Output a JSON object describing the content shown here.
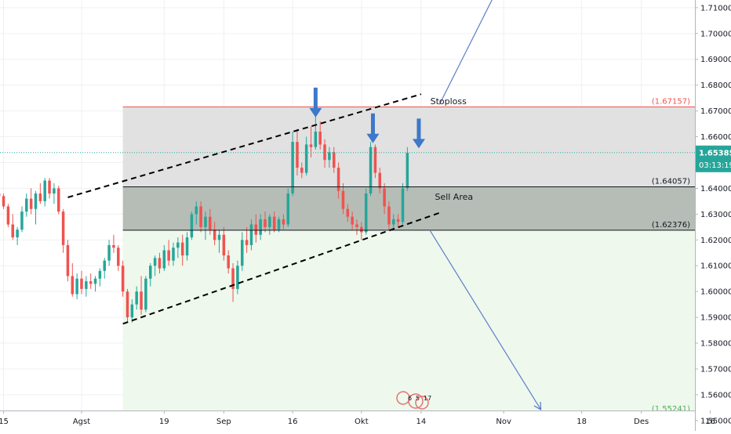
{
  "chart_data": {
    "type": "candlestick",
    "title": "",
    "xlabel": "",
    "ylabel": "",
    "ylim": [
      1.546,
      1.713
    ],
    "y_ticks": [
      "1.55000",
      "1.56000",
      "1.57000",
      "1.58000",
      "1.59000",
      "1.60000",
      "1.61000",
      "1.62000",
      "1.63000",
      "1.64000",
      "1.65000",
      "1.66000",
      "1.67000",
      "1.68000",
      "1.69000",
      "1.70000",
      "1.71000"
    ],
    "x_ticks": [
      {
        "label": "15",
        "day": -17
      },
      {
        "label": "Agst",
        "day": 0
      },
      {
        "label": "19",
        "day": 18
      },
      {
        "label": "Sep",
        "day": 31
      },
      {
        "label": "16",
        "day": 46
      },
      {
        "label": "Okt",
        "day": 61
      },
      {
        "label": "14",
        "day": 74
      },
      {
        "label": "Nov",
        "day": 92
      },
      {
        "label": "18",
        "day": 109
      },
      {
        "label": "Des",
        "day": 122
      },
      {
        "label": "16",
        "day": 137
      }
    ],
    "current_price": {
      "value": "1.65385",
      "countdown": "03:13:19",
      "price": 1.65385,
      "color": "#26a69a"
    },
    "levels": [
      {
        "name": "stoploss",
        "label": "(1.67157)",
        "price": 1.67157,
        "color": "#ef5350"
      },
      {
        "name": "sell-area-top",
        "label": "(1.64057)",
        "price": 1.64057,
        "color": "#131722"
      },
      {
        "name": "sell-area-bottom",
        "label": "(1.62376)",
        "price": 1.62376,
        "color": "#131722"
      },
      {
        "name": "target",
        "label": "(1.55241)",
        "price": 1.55241,
        "color": "#4caf50"
      }
    ],
    "annotations": [
      {
        "text": "Stoploss",
        "day": 76,
        "price": 1.6726
      },
      {
        "text": "Sell Area",
        "day": 77,
        "price": 1.6355
      }
    ],
    "event_badges": [
      "6",
      "5",
      "17"
    ],
    "zones": [
      {
        "name": "risk-zone",
        "from_day": 9,
        "to_day": 142,
        "top": 1.67157,
        "bottom": 1.64057,
        "color": "#e1e1e1"
      },
      {
        "name": "sell-zone",
        "from_day": 9,
        "to_day": 142,
        "top": 1.64057,
        "bottom": 1.62376,
        "color": "#b6bdb6"
      },
      {
        "name": "target-zone",
        "from_day": 9,
        "to_day": 142,
        "top": 1.62376,
        "bottom": 1.55241,
        "color": "#eef8ec"
      }
    ],
    "channel": {
      "upper": {
        "from": [
          -3,
          1.6365
        ],
        "to": [
          74,
          1.6765
        ]
      },
      "lower": {
        "from": [
          9,
          1.5875
        ],
        "to": [
          78,
          1.6305
        ]
      },
      "color": "#000000"
    },
    "projections": [
      {
        "from": [
          78,
          1.6725
        ],
        "to": [
          90,
          1.715
        ]
      },
      {
        "from": [
          76,
          1.6235
        ],
        "to": [
          100,
          1.5545
        ]
      }
    ],
    "signal_arrows": [
      {
        "day": 51,
        "price": 1.6675
      },
      {
        "day": 63.5,
        "price": 1.6575
      },
      {
        "day": 73.5,
        "price": 1.6555
      }
    ],
    "series": [
      {
        "name": "",
        "ohlc": [
          [
            -18,
            1.638,
            1.639,
            1.634,
            1.637
          ],
          [
            -17,
            1.637,
            1.638,
            1.632,
            1.633
          ],
          [
            -16,
            1.633,
            1.634,
            1.625,
            1.626
          ],
          [
            -15,
            1.626,
            1.63,
            1.62,
            1.621
          ],
          [
            -14,
            1.621,
            1.625,
            1.618,
            1.624
          ],
          [
            -13,
            1.624,
            1.633,
            1.623,
            1.631
          ],
          [
            -12,
            1.631,
            1.638,
            1.629,
            1.636
          ],
          [
            -11,
            1.636,
            1.64,
            1.63,
            1.632
          ],
          [
            -10,
            1.632,
            1.639,
            1.626,
            1.638
          ],
          [
            -9,
            1.638,
            1.642,
            1.634,
            1.635
          ],
          [
            -8,
            1.635,
            1.644,
            1.633,
            1.643
          ],
          [
            -7,
            1.643,
            1.644,
            1.636,
            1.638
          ],
          [
            -6,
            1.638,
            1.642,
            1.634,
            1.64
          ],
          [
            -5,
            1.64,
            1.641,
            1.63,
            1.631
          ],
          [
            -4,
            1.631,
            1.632,
            1.615,
            1.618
          ],
          [
            -3,
            1.618,
            1.62,
            1.604,
            1.606
          ],
          [
            -2,
            1.606,
            1.611,
            1.598,
            1.599
          ],
          [
            -1,
            1.599,
            1.607,
            1.597,
            1.605
          ],
          [
            0,
            1.605,
            1.608,
            1.599,
            1.601
          ],
          [
            1,
            1.601,
            1.606,
            1.598,
            1.604
          ],
          [
            2,
            1.604,
            1.607,
            1.601,
            1.603
          ],
          [
            3,
            1.603,
            1.606,
            1.6,
            1.605
          ],
          [
            4,
            1.605,
            1.609,
            1.602,
            1.608
          ],
          [
            5,
            1.608,
            1.613,
            1.605,
            1.612
          ],
          [
            6,
            1.612,
            1.62,
            1.61,
            1.618
          ],
          [
            7,
            1.618,
            1.622,
            1.615,
            1.617
          ],
          [
            8,
            1.617,
            1.618,
            1.608,
            1.61
          ],
          [
            9,
            1.61,
            1.612,
            1.598,
            1.6
          ],
          [
            10,
            1.6,
            1.601,
            1.588,
            1.59
          ],
          [
            11,
            1.59,
            1.597,
            1.588,
            1.595
          ],
          [
            12,
            1.595,
            1.602,
            1.593,
            1.6
          ],
          [
            13,
            1.6,
            1.606,
            1.591,
            1.593
          ],
          [
            14,
            1.593,
            1.606,
            1.592,
            1.605
          ],
          [
            15,
            1.605,
            1.611,
            1.602,
            1.61
          ],
          [
            16,
            1.61,
            1.614,
            1.606,
            1.613
          ],
          [
            17,
            1.613,
            1.615,
            1.607,
            1.609
          ],
          [
            18,
            1.609,
            1.618,
            1.608,
            1.616
          ],
          [
            19,
            1.616,
            1.62,
            1.61,
            1.612
          ],
          [
            20,
            1.612,
            1.619,
            1.61,
            1.617
          ],
          [
            21,
            1.617,
            1.621,
            1.613,
            1.619
          ],
          [
            22,
            1.619,
            1.622,
            1.61,
            1.614
          ],
          [
            23,
            1.614,
            1.623,
            1.612,
            1.621
          ],
          [
            24,
            1.621,
            1.631,
            1.62,
            1.63
          ],
          [
            25,
            1.63,
            1.635,
            1.626,
            1.633
          ],
          [
            26,
            1.633,
            1.635,
            1.623,
            1.625
          ],
          [
            27,
            1.625,
            1.631,
            1.62,
            1.629
          ],
          [
            28,
            1.629,
            1.632,
            1.622,
            1.624
          ],
          [
            29,
            1.624,
            1.627,
            1.618,
            1.62
          ],
          [
            30,
            1.62,
            1.624,
            1.615,
            1.622
          ],
          [
            31,
            1.622,
            1.625,
            1.612,
            1.614
          ],
          [
            32,
            1.614,
            1.616,
            1.607,
            1.609
          ],
          [
            33,
            1.609,
            1.611,
            1.596,
            1.601
          ],
          [
            34,
            1.601,
            1.612,
            1.599,
            1.61
          ],
          [
            35,
            1.61,
            1.623,
            1.608,
            1.62
          ],
          [
            36,
            1.62,
            1.625,
            1.615,
            1.618
          ],
          [
            37,
            1.618,
            1.628,
            1.616,
            1.626
          ],
          [
            38,
            1.626,
            1.63,
            1.619,
            1.622
          ],
          [
            39,
            1.622,
            1.63,
            1.62,
            1.628
          ],
          [
            40,
            1.628,
            1.631,
            1.623,
            1.625
          ],
          [
            41,
            1.625,
            1.63,
            1.622,
            1.629
          ],
          [
            42,
            1.629,
            1.631,
            1.623,
            1.624
          ],
          [
            43,
            1.624,
            1.629,
            1.623,
            1.628
          ],
          [
            44,
            1.628,
            1.63,
            1.624,
            1.626
          ],
          [
            45,
            1.626,
            1.64,
            1.625,
            1.638
          ],
          [
            46,
            1.638,
            1.662,
            1.637,
            1.658
          ],
          [
            47,
            1.658,
            1.663,
            1.645,
            1.648
          ],
          [
            48,
            1.648,
            1.65,
            1.644,
            1.646
          ],
          [
            49,
            1.646,
            1.66,
            1.645,
            1.657
          ],
          [
            50,
            1.657,
            1.664,
            1.652,
            1.656
          ],
          [
            51,
            1.656,
            1.668,
            1.655,
            1.662
          ],
          [
            52,
            1.662,
            1.666,
            1.655,
            1.657
          ],
          [
            53,
            1.657,
            1.659,
            1.648,
            1.651
          ],
          [
            54,
            1.651,
            1.656,
            1.648,
            1.654
          ],
          [
            55,
            1.654,
            1.656,
            1.646,
            1.648
          ],
          [
            56,
            1.648,
            1.65,
            1.636,
            1.639
          ],
          [
            57,
            1.639,
            1.642,
            1.63,
            1.632
          ],
          [
            58,
            1.632,
            1.634,
            1.627,
            1.629
          ],
          [
            59,
            1.629,
            1.631,
            1.624,
            1.626
          ],
          [
            60,
            1.626,
            1.628,
            1.622,
            1.625
          ],
          [
            61,
            1.625,
            1.627,
            1.62,
            1.623
          ],
          [
            62,
            1.623,
            1.64,
            1.622,
            1.638
          ],
          [
            63,
            1.638,
            1.658,
            1.637,
            1.656
          ],
          [
            64,
            1.656,
            1.657,
            1.644,
            1.646
          ],
          [
            65,
            1.646,
            1.648,
            1.638,
            1.64
          ],
          [
            66,
            1.64,
            1.642,
            1.63,
            1.633
          ],
          [
            67,
            1.633,
            1.635,
            1.624,
            1.626
          ],
          [
            68,
            1.626,
            1.63,
            1.624,
            1.628
          ],
          [
            69,
            1.628,
            1.63,
            1.625,
            1.627
          ],
          [
            70,
            1.627,
            1.642,
            1.626,
            1.64
          ],
          [
            71,
            1.64,
            1.656,
            1.639,
            1.6538
          ]
        ]
      }
    ]
  }
}
